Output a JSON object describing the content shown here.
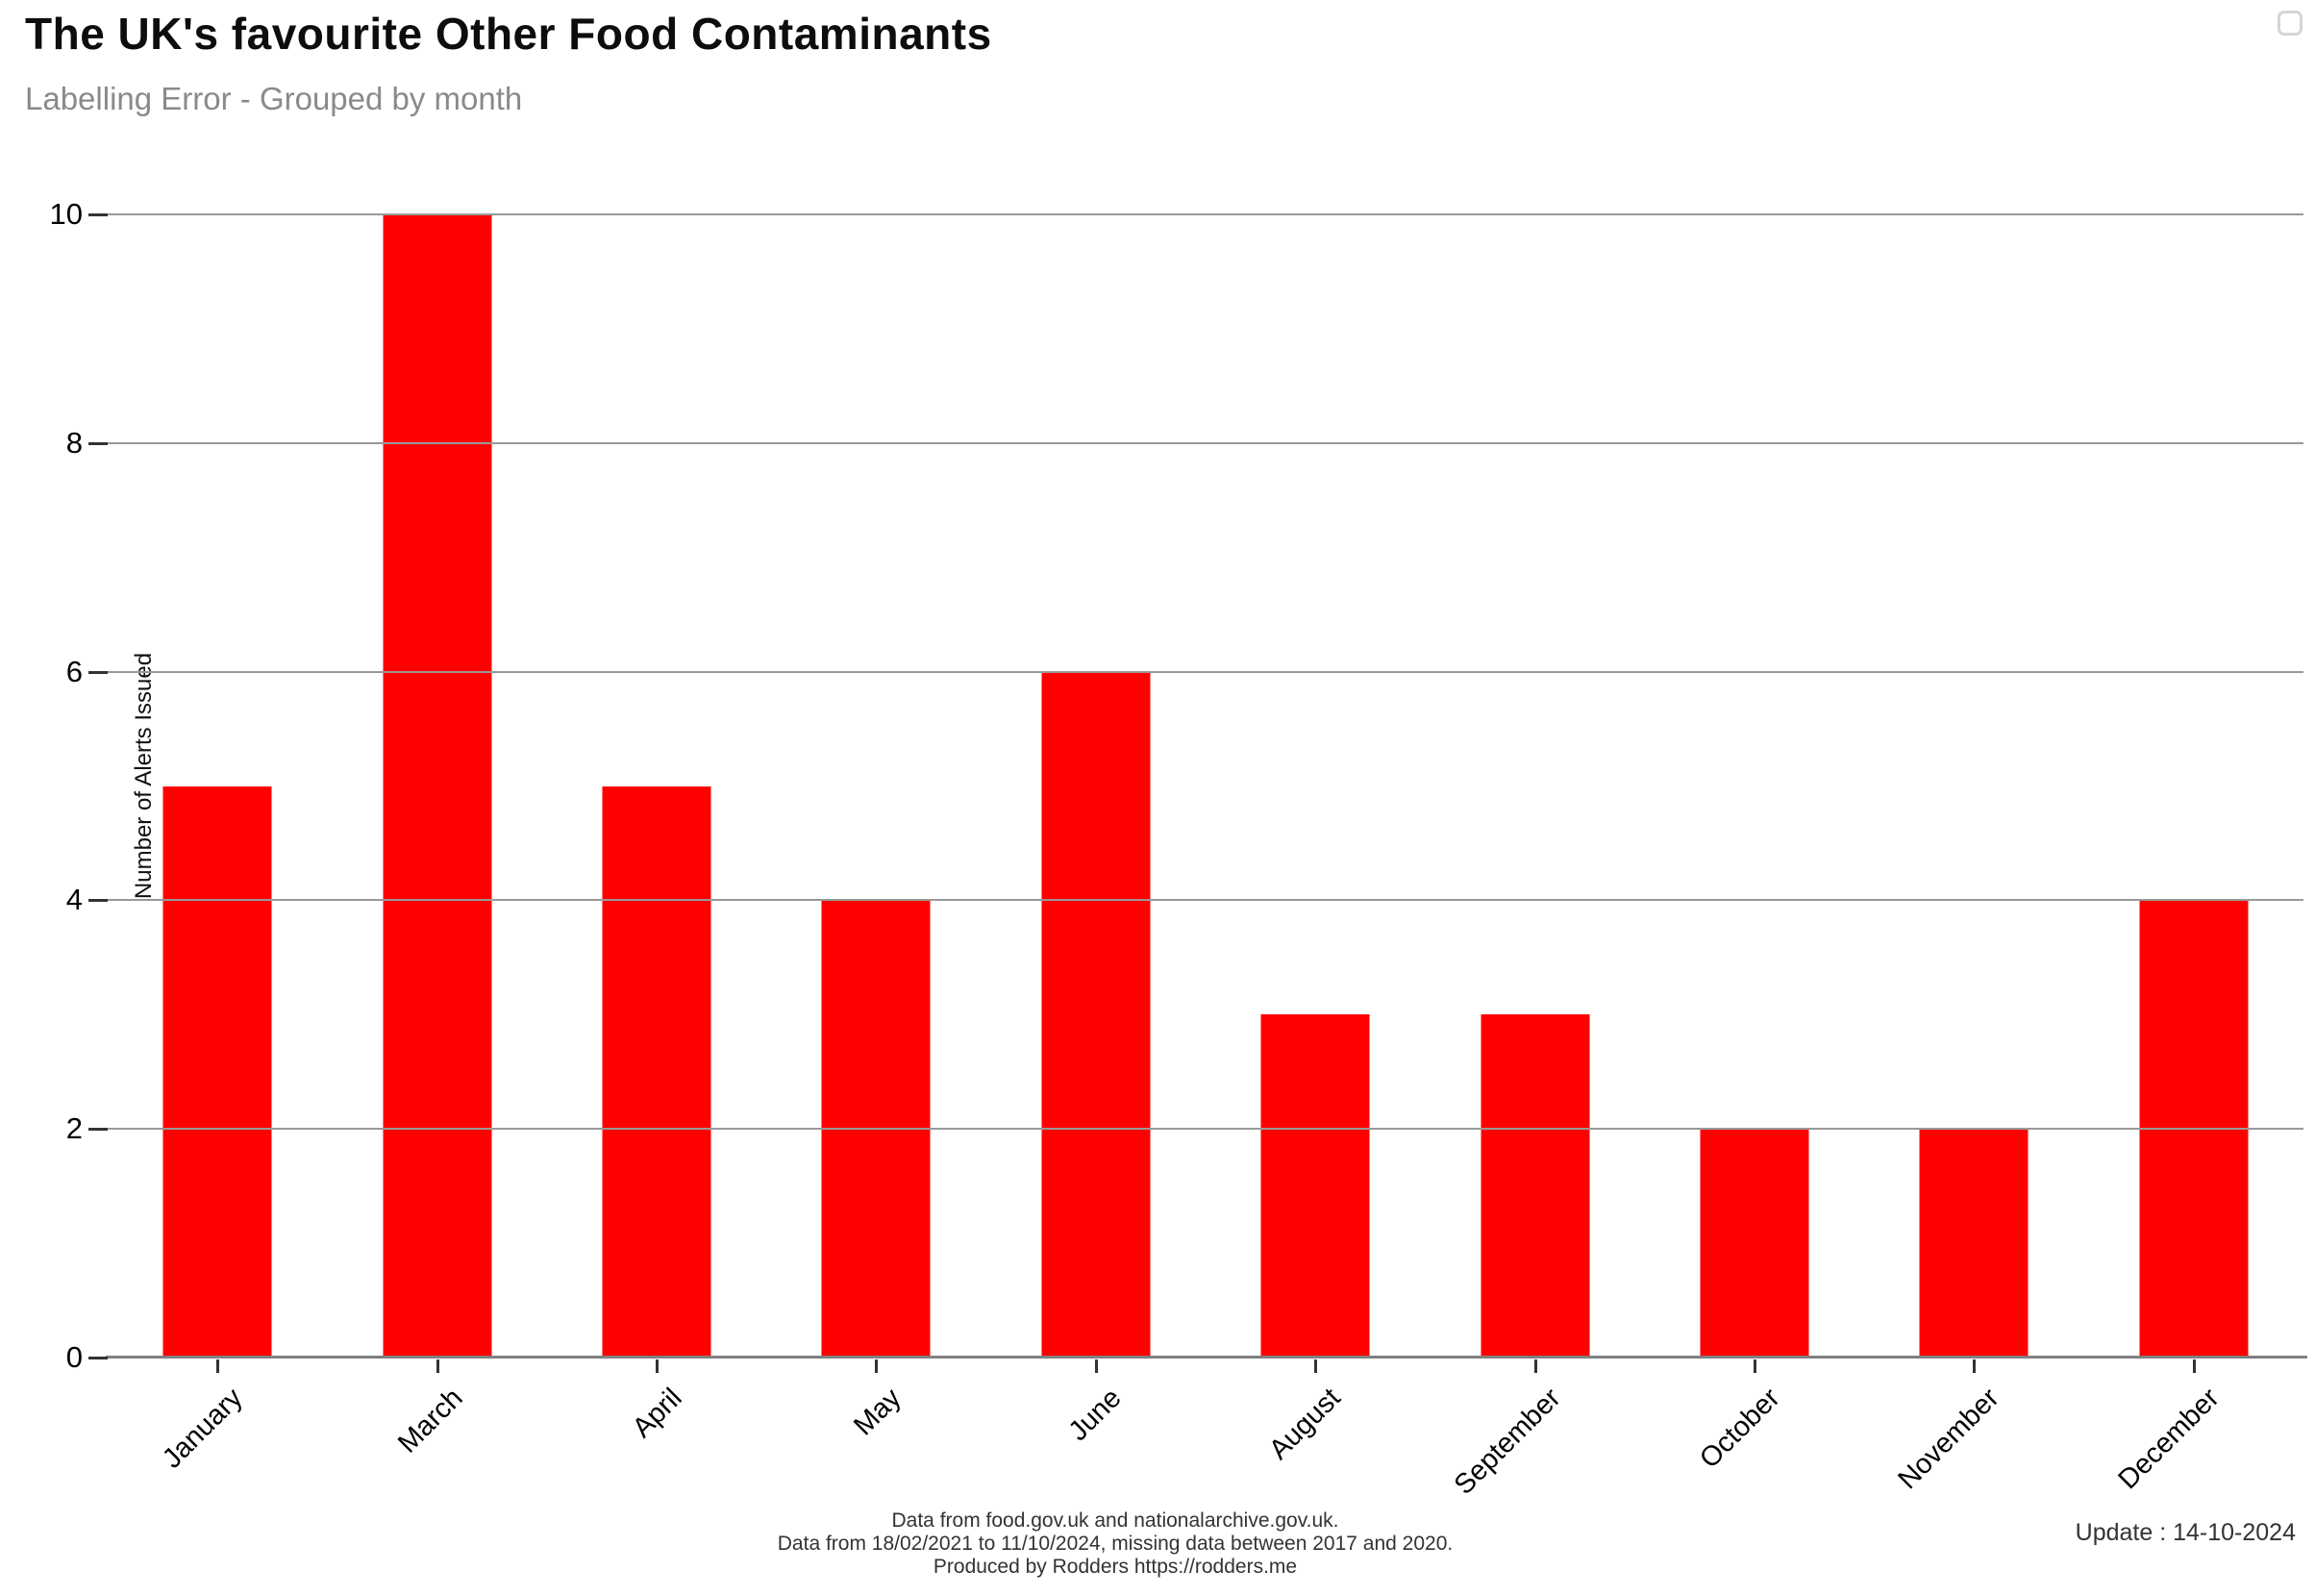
{
  "header": {
    "title": "The UK's favourite Other Food Contaminants",
    "subtitle": "Labelling Error - Grouped by month"
  },
  "chart_data": {
    "type": "bar",
    "title": "The UK's favourite Other Food Contaminants",
    "subtitle": "Labelling Error - Grouped by month",
    "categories": [
      "January",
      "March",
      "April",
      "May",
      "June",
      "August",
      "September",
      "October",
      "November",
      "December"
    ],
    "values": [
      5,
      10,
      5,
      4,
      6,
      3,
      3,
      2,
      2,
      4
    ],
    "xlabel": "",
    "ylabel": "Number of Alerts Issued",
    "ylim": [
      0,
      10
    ],
    "yticks": [
      0,
      2,
      4,
      6,
      8,
      10
    ],
    "bar_color": "#ff0000",
    "grid": true,
    "gridline_color": "#999999",
    "axis_line_color": "#808080",
    "tick_color": "#333333",
    "legend_position": "none",
    "x_label_rotation_deg": 45
  },
  "footer": {
    "caption_lines": [
      "Data from food.gov.uk and nationalarchive.gov.uk.",
      "Data from 18/02/2021 to 11/10/2024, missing data between 2017 and 2020.",
      "Produced by Rodders https://rodders.me"
    ],
    "update_text": "Update : 14-10-2024"
  }
}
